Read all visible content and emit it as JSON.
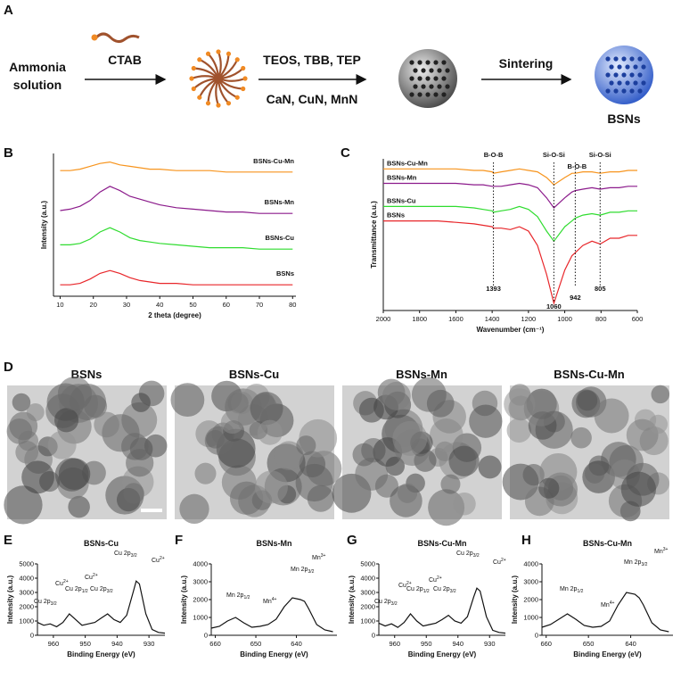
{
  "scheme": {
    "panel": "A",
    "start": [
      "Ammonia",
      "solution"
    ],
    "step1": "CTAB",
    "step2_top": "TEOS, TBB, TEP",
    "step2_bottom": "CaN, CuN, MnN",
    "step3": "Sintering",
    "product": "BSNs"
  },
  "tem": {
    "panel": "D",
    "titles": [
      "BSNs",
      "BSNs-Cu",
      "BSNs-Mn",
      "BSNs-Cu-Mn"
    ]
  },
  "chart_data": [
    {
      "type": "line",
      "panel": "B",
      "xlabel": "2 theta (degree)",
      "ylabel": "Intensity (a.u.)",
      "x": [
        10,
        13,
        16,
        19,
        22,
        25,
        28,
        31,
        34,
        37,
        40,
        45,
        50,
        55,
        60,
        65,
        70,
        75,
        80
      ],
      "xlim": [
        8,
        81
      ],
      "xticks": [
        10,
        20,
        30,
        40,
        50,
        60,
        70,
        80
      ],
      "ylim": [
        0,
        100
      ],
      "series": [
        {
          "name": "BSNs",
          "color": "#e8262a",
          "values": [
            8,
            8,
            9,
            12,
            16,
            18,
            16,
            13,
            11,
            10,
            9,
            9,
            8,
            8,
            8,
            8,
            8,
            8,
            8
          ]
        },
        {
          "name": "BSNs-Cu",
          "color": "#2fdc2f",
          "values": [
            36,
            36,
            37,
            40,
            45,
            48,
            45,
            41,
            39,
            38,
            37,
            36,
            35,
            34,
            34,
            34,
            33,
            33,
            33
          ]
        },
        {
          "name": "BSNs-Mn",
          "color": "#8b1a8b",
          "values": [
            60,
            61,
            63,
            67,
            73,
            77,
            74,
            70,
            68,
            66,
            64,
            62,
            61,
            60,
            59,
            59,
            58,
            58,
            58
          ]
        },
        {
          "name": "BSNs-Cu-Mn",
          "color": "#f7941d",
          "values": [
            88,
            88,
            89,
            91,
            93,
            94,
            92,
            91,
            90,
            89,
            89,
            88,
            88,
            88,
            87,
            87,
            87,
            87,
            87
          ]
        }
      ]
    },
    {
      "type": "line",
      "panel": "C",
      "xlabel": "Wavenumber (cm⁻¹)",
      "ylabel": "Transmittance (a.u.)",
      "x": [
        2000,
        1900,
        1800,
        1700,
        1600,
        1500,
        1450,
        1400,
        1393,
        1350,
        1300,
        1250,
        1200,
        1150,
        1100,
        1060,
        1000,
        960,
        942,
        900,
        850,
        805,
        750,
        700,
        650,
        600
      ],
      "xlim": [
        2000,
        600
      ],
      "xticks": [
        2000,
        1800,
        1600,
        1400,
        1200,
        1000,
        800,
        600
      ],
      "ylim": [
        0,
        105
      ],
      "peak_positions": [
        1393,
        1060,
        942,
        805
      ],
      "band_labels": [
        "B-O-B",
        "Si-O-Si",
        "B-O-B",
        "Si-O-Si"
      ],
      "series": [
        {
          "name": "BSNs",
          "color": "#e8262a",
          "values": [
            62,
            62,
            62,
            62,
            61,
            60,
            59,
            58,
            57,
            57,
            56,
            58,
            55,
            45,
            25,
            5,
            28,
            38,
            40,
            45,
            48,
            46,
            50,
            50,
            52,
            52
          ]
        },
        {
          "name": "BSNs-Cu",
          "color": "#2fdc2f",
          "values": [
            72,
            72,
            72,
            72,
            72,
            71,
            70,
            69,
            68,
            69,
            70,
            72,
            70,
            65,
            55,
            48,
            58,
            62,
            64,
            66,
            67,
            66,
            68,
            68,
            69,
            69
          ]
        },
        {
          "name": "BSNs-Mn",
          "color": "#8b1a8b",
          "values": [
            88,
            88,
            88,
            88,
            88,
            87,
            87,
            86,
            86,
            86,
            87,
            88,
            87,
            85,
            78,
            71,
            78,
            82,
            83,
            84,
            85,
            84,
            85,
            85,
            86,
            86
          ]
        },
        {
          "name": "BSNs-Cu-Mn",
          "color": "#f7941d",
          "values": [
            98,
            98,
            98,
            98,
            98,
            97,
            97,
            96,
            95,
            96,
            97,
            98,
            97,
            96,
            92,
            87,
            92,
            95,
            95,
            96,
            96,
            95,
            96,
            96,
            97,
            97
          ]
        }
      ]
    },
    {
      "type": "line",
      "panel": "E",
      "title": "BSNs-Cu",
      "xlabel": "Binding Energy (eV)",
      "ylabel": "Intensity (a.u.)",
      "x": [
        965,
        963,
        961,
        959,
        957,
        955,
        953,
        951,
        949,
        947,
        945,
        943,
        941,
        939,
        937,
        935,
        934,
        933,
        931,
        929,
        927,
        925
      ],
      "values": [
        900,
        700,
        800,
        600,
        900,
        1500,
        1100,
        700,
        800,
        900,
        1200,
        1500,
        1100,
        900,
        1400,
        3000,
        3800,
        3600,
        1500,
        400,
        200,
        150
      ],
      "color": "#111111",
      "xlim": [
        965,
        925
      ],
      "xticks": [
        960,
        950,
        940,
        930
      ],
      "ylim": [
        0,
        5000
      ],
      "yticks": [
        0,
        1000,
        2000,
        3000,
        4000,
        5000
      ],
      "annotations": [
        {
          "text": "Cu 2p",
          "sub": "3/2"
        },
        {
          "text": "Cu",
          "sup": "2+"
        },
        {
          "text": "Cu 2p",
          "sub": "3/2"
        },
        {
          "text": "Cu",
          "sup": "2+"
        },
        {
          "text": "Cu 2p",
          "sub": "1/2"
        },
        {
          "text": "Cu",
          "sup": "2+"
        },
        {
          "text": "Cu 2p",
          "sub": "3/2"
        }
      ]
    },
    {
      "type": "line",
      "panel": "F",
      "title": "BSNs-Mn",
      "xlabel": "Binding Energy (eV)",
      "ylabel": "Intensity (a.u.)",
      "x": [
        661,
        659,
        657,
        655,
        653,
        651,
        649,
        647,
        645,
        643,
        641,
        639,
        638,
        637,
        635,
        633,
        631
      ],
      "values": [
        400,
        500,
        800,
        1000,
        700,
        450,
        500,
        600,
        900,
        1600,
        2100,
        2000,
        1900,
        1500,
        600,
        300,
        200
      ],
      "color": "#111111",
      "xlim": [
        661,
        630
      ],
      "xticks": [
        660,
        650,
        640
      ],
      "ylim": [
        0,
        4000
      ],
      "yticks": [
        0,
        1000,
        2000,
        3000,
        4000
      ],
      "annotations": [
        {
          "text": "Mn 2p",
          "sub": "1/2"
        },
        {
          "text": "Mn",
          "sup": "4+"
        },
        {
          "text": "Mn 2p",
          "sub": "3/2"
        },
        {
          "text": "Mn",
          "sup": "3+"
        }
      ]
    },
    {
      "type": "line",
      "panel": "G",
      "title": "BSNs-Cu-Mn",
      "xlabel": "Binding Energy (eV)",
      "ylabel": "Intensity (a.u.)",
      "x": [
        965,
        963,
        961,
        959,
        957,
        955,
        953,
        951,
        949,
        947,
        945,
        943,
        941,
        939,
        937,
        935,
        934,
        933,
        931,
        929,
        927,
        925
      ],
      "values": [
        850,
        650,
        800,
        550,
        900,
        1500,
        1000,
        650,
        750,
        850,
        1100,
        1400,
        1000,
        850,
        1300,
        2700,
        3300,
        3100,
        1300,
        350,
        200,
        150
      ],
      "color": "#111111",
      "xlim": [
        965,
        925
      ],
      "xticks": [
        960,
        950,
        940,
        930
      ],
      "ylim": [
        0,
        5000
      ],
      "yticks": [
        0,
        1000,
        2000,
        3000,
        4000,
        5000
      ],
      "annotations": [
        {
          "text": "Cu 2p",
          "sub": "3/2"
        },
        {
          "text": "Cu",
          "sup": "2+"
        },
        {
          "text": "Cu 2p",
          "sub": "3/2"
        },
        {
          "text": "Cu",
          "sup": "2+"
        },
        {
          "text": "Cu 2p",
          "sub": "1/2"
        },
        {
          "text": "Cu",
          "sup": "2+"
        },
        {
          "text": "Cu 2p",
          "sub": "3/2"
        }
      ]
    },
    {
      "type": "line",
      "panel": "H",
      "title": "BSNs-Cu-Mn",
      "xlabel": "Binding Energy (eV)",
      "ylabel": "Intensity (a.u.)",
      "x": [
        661,
        659,
        657,
        655,
        653,
        651,
        649,
        647,
        645,
        643,
        641,
        639,
        638,
        637,
        635,
        633,
        631
      ],
      "values": [
        450,
        600,
        900,
        1200,
        900,
        550,
        450,
        500,
        800,
        1700,
        2400,
        2300,
        2100,
        1700,
        700,
        300,
        200
      ],
      "color": "#111111",
      "xlim": [
        661,
        630
      ],
      "xticks": [
        660,
        650,
        640
      ],
      "ylim": [
        0,
        4000
      ],
      "yticks": [
        0,
        1000,
        2000,
        3000,
        4000
      ],
      "annotations": [
        {
          "text": "Mn 2p",
          "sub": "1/2"
        },
        {
          "text": "Mn",
          "sup": "4+"
        },
        {
          "text": "Mn 2p",
          "sub": "3/2"
        },
        {
          "text": "Mn",
          "sup": "3+"
        }
      ]
    }
  ]
}
